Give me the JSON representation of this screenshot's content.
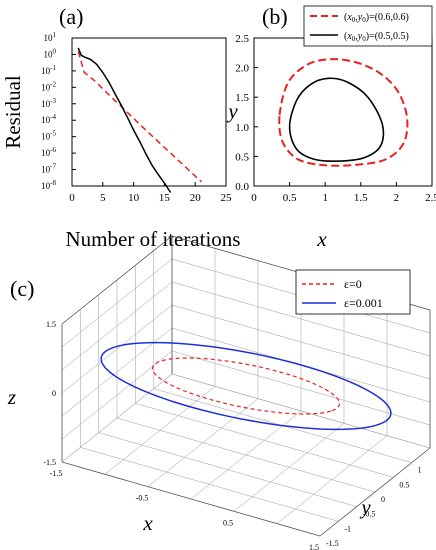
{
  "panels": {
    "a": {
      "label": "(a)"
    },
    "b": {
      "label": "(b)"
    },
    "c": {
      "label": "(c)"
    }
  },
  "chart_data": [
    {
      "type": "line",
      "panel": "(a)",
      "xlabel": "Number of iterations",
      "ylabel": "Residual",
      "xlim": [
        0,
        25
      ],
      "ylim": [
        1e-08,
        10
      ],
      "yscale": "log",
      "xticks": [
        "0",
        "5",
        "10",
        "15",
        "20",
        "25"
      ],
      "yticks": [
        {
          "base": "10",
          "exp": "1",
          "value": 1
        },
        {
          "base": "10",
          "exp": "0",
          "value": 0
        },
        {
          "base": "10",
          "exp": "-1",
          "value": -1
        },
        {
          "base": "10",
          "exp": "-2",
          "value": -2
        },
        {
          "base": "10",
          "exp": "-3",
          "value": -3
        },
        {
          "base": "10",
          "exp": "-4",
          "value": -4
        },
        {
          "base": "10",
          "exp": "-5",
          "value": -5
        },
        {
          "base": "10",
          "exp": "-6",
          "value": -6
        },
        {
          "base": "10",
          "exp": "-7",
          "value": -7
        },
        {
          "base": "10",
          "exp": "-8",
          "value": -8
        }
      ],
      "series": [
        {
          "style": "dashed",
          "color": "#e8211f",
          "x": [
            1,
            2,
            3,
            4,
            5,
            6,
            7,
            8,
            9,
            10,
            11,
            12,
            13,
            14,
            15,
            16,
            17,
            18,
            19,
            20,
            21
          ],
          "y": [
            1.5,
            0.08,
            0.04,
            0.02,
            0.008,
            0.0035,
            0.0015,
            0.0007,
            0.0003,
            0.00013,
            5.5e-05,
            2.5e-05,
            1.1e-05,
            5e-06,
            2.2e-06,
            1e-06,
            4.5e-07,
            2e-07,
            9e-08,
            4e-08,
            1.8e-08
          ]
        },
        {
          "style": "solid",
          "color": "#000000",
          "x": [
            1,
            1.5,
            2,
            3,
            4,
            5,
            6,
            7,
            8,
            9,
            10,
            11,
            12,
            13,
            14,
            15,
            16
          ],
          "y": [
            2.5,
            0.9,
            0.7,
            0.5,
            0.25,
            0.08,
            0.02,
            0.004,
            0.0008,
            0.00015,
            2.5e-05,
            5e-06,
            9e-07,
            1.8e-07,
            5e-08,
            1.5e-08,
            4e-09
          ]
        }
      ]
    },
    {
      "type": "line",
      "panel": "(b)",
      "xlabel": "x",
      "ylabel": "y",
      "xlim": [
        0,
        2.5
      ],
      "ylim": [
        0,
        2.5
      ],
      "xticks": [
        "0",
        "0.5",
        "1",
        "1.5",
        "2",
        "2.5"
      ],
      "yticks": [
        "0.0",
        "0.5",
        "1.0",
        "1.5",
        "2.0",
        "2.5"
      ],
      "legend_position": "top-right",
      "series": [
        {
          "name": "(x0,y0)=(0.6,0.6)",
          "style": "dashed",
          "color": "#e8211f",
          "x": [
            0.36,
            0.48,
            0.75,
            1.05,
            1.4,
            1.75,
            2.02,
            2.15,
            2.1,
            1.85,
            1.45,
            1.0,
            0.62,
            0.4,
            0.36
          ],
          "y": [
            1.2,
            1.75,
            2.05,
            2.14,
            2.1,
            1.92,
            1.6,
            1.15,
            0.72,
            0.45,
            0.36,
            0.35,
            0.45,
            0.75,
            1.2
          ]
        },
        {
          "name": "(x0,y0)=(0.5,0.5)",
          "style": "solid",
          "color": "#000000",
          "x": [
            0.5,
            0.6,
            0.8,
            1.05,
            1.32,
            1.6,
            1.8,
            1.78,
            1.55,
            1.2,
            0.85,
            0.6,
            0.5
          ],
          "y": [
            1.0,
            1.45,
            1.72,
            1.82,
            1.75,
            1.5,
            1.05,
            0.68,
            0.48,
            0.42,
            0.45,
            0.62,
            1.0
          ]
        }
      ],
      "legend": [
        {
          "var_x": "x",
          "sub_x": "0",
          "var_y": "y",
          "sub_y": "0",
          "open": "(",
          "comma": ",",
          "value": ")=(0.6,0.6)"
        },
        {
          "var_x": "x",
          "sub_x": "0",
          "var_y": "y",
          "sub_y": "0",
          "open": "(",
          "comma": ",",
          "value": ")=(0.5,0.5)"
        }
      ]
    },
    {
      "type": "line3d",
      "panel": "(c)",
      "xlabel": "x",
      "ylabel": "y",
      "zlabel": "z",
      "xlim": [
        -1.5,
        1.5
      ],
      "ylim": [
        -1.5,
        1.5
      ],
      "zlim": [
        -1.5,
        1.5
      ],
      "xticks": [
        "-1.5",
        "-0.5",
        "0.5",
        "1.5"
      ],
      "yticks": [
        "-1.5",
        "-1",
        "-0.5",
        "0",
        "0.5",
        "1",
        "1.5"
      ],
      "zticks": [
        "1.5",
        "0",
        "-1.5"
      ],
      "legend_position": "top-right",
      "series": [
        {
          "name": "ε=0",
          "style": "dashed",
          "color": "#e8211f",
          "radius": 1.0,
          "tilt": 0.35
        },
        {
          "name": "ε=0.001",
          "style": "solid",
          "color": "#1f2fd6",
          "radius": 1.55,
          "tilt": 0.35
        }
      ]
    }
  ]
}
